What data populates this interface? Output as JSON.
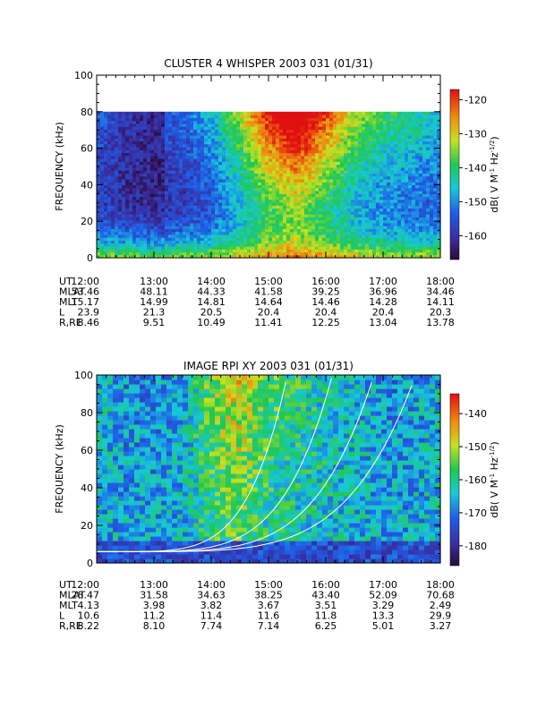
{
  "chart_data": [
    {
      "type": "heatmap",
      "title": "CLUSTER 4 WHISPER 2003 031 (01/31)",
      "ylabel": "FREQUENCY (kHz)",
      "ylim": [
        0,
        100
      ],
      "yticks": [
        "0",
        "20",
        "40",
        "60",
        "80",
        "100"
      ],
      "xlim": [
        "12:00",
        "18:00"
      ],
      "data_top_khz": 80,
      "colorbar": {
        "label": "dB( V M⁻¹ Hz⁻¹ᐟ²)",
        "label_parts": [
          "dB( V M",
          "-1",
          " Hz",
          "-1/2",
          ")"
        ],
        "range": [
          -167,
          -117
        ],
        "ticks": [
          "-120",
          "-130",
          "-140",
          "-150",
          "-160"
        ]
      },
      "intensity_profile": [
        {
          "t": "12:00",
          "level": 0.3
        },
        {
          "t": "12:30",
          "level": 0.22
        },
        {
          "t": "13:00",
          "level": 0.18
        },
        {
          "t": "13:30",
          "level": 0.22
        },
        {
          "t": "14:00",
          "level": 0.32
        },
        {
          "t": "14:30",
          "level": 0.55
        },
        {
          "t": "15:00",
          "level": 0.8
        },
        {
          "t": "15:30",
          "level": 0.95
        },
        {
          "t": "16:00",
          "level": 0.75
        },
        {
          "t": "16:30",
          "level": 0.55
        },
        {
          "t": "17:00",
          "level": 0.45
        },
        {
          "t": "17:30",
          "level": 0.4
        },
        {
          "t": "18:00",
          "level": 0.35
        }
      ],
      "table": {
        "rows": [
          {
            "label": "UT",
            "values": [
              "12:00",
              "13:00",
              "14:00",
              "15:00",
              "16:00",
              "17:00",
              "18:00"
            ]
          },
          {
            "label": "MLAT",
            "values": [
              "53.46",
              "48.11",
              "44.33",
              "41.58",
              "39.25",
              "36.96",
              "34.46"
            ]
          },
          {
            "label": "MLT",
            "values": [
              "15.17",
              "14.99",
              "14.81",
              "14.64",
              "14.46",
              "14.28",
              "14.11"
            ]
          },
          {
            "label": "L",
            "values": [
              "23.9",
              "21.3",
              "20.5",
              "20.4",
              "20.4",
              "20.4",
              "20.3"
            ]
          },
          {
            "label": "R,RE",
            "values": [
              "8.46",
              "9.51",
              "10.49",
              "11.41",
              "12.25",
              "13.04",
              "13.78"
            ]
          }
        ]
      }
    },
    {
      "type": "heatmap",
      "title": "IMAGE RPI XY 2003 031 (01/31)",
      "ylabel": "FREQUENCY (kHz)",
      "ylim": [
        0,
        100
      ],
      "yticks": [
        "0",
        "20",
        "40",
        "60",
        "80",
        "100"
      ],
      "xlim": [
        "12:00",
        "18:00"
      ],
      "colorbar": {
        "label": "dB( V M⁻¹ Hz⁻¹ᐟ²)",
        "label_parts": [
          "dB( V M",
          "-1",
          " Hz",
          "-1/2",
          ")"
        ],
        "range": [
          -186,
          -134
        ],
        "ticks": [
          "-140",
          "-150",
          "-160",
          "-170",
          "-180"
        ]
      },
      "intensity_profile": [
        {
          "t": "12:00",
          "level": 0.35
        },
        {
          "t": "12:30",
          "level": 0.3
        },
        {
          "t": "13:00",
          "level": 0.28
        },
        {
          "t": "13:30",
          "level": 0.35
        },
        {
          "t": "14:00",
          "level": 0.55
        },
        {
          "t": "14:30",
          "level": 0.65
        },
        {
          "t": "15:00",
          "level": 0.5
        },
        {
          "t": "15:30",
          "level": 0.45
        },
        {
          "t": "16:00",
          "level": 0.4
        },
        {
          "t": "16:30",
          "level": 0.38
        },
        {
          "t": "17:00",
          "level": 0.3
        },
        {
          "t": "17:30",
          "level": 0.3
        },
        {
          "t": "18:00",
          "level": 0.35
        }
      ],
      "table": {
        "rows": [
          {
            "label": "UT",
            "values": [
              "12:00",
              "13:00",
              "14:00",
              "15:00",
              "16:00",
              "17:00",
              "18:00"
            ]
          },
          {
            "label": "MLAT",
            "values": [
              "28.47",
              "31.58",
              "34.63",
              "38.25",
              "43.40",
              "52.09",
              "70.68"
            ]
          },
          {
            "label": "MLT",
            "values": [
              "4.13",
              "3.98",
              "3.82",
              "3.67",
              "3.51",
              "3.29",
              "2.49"
            ]
          },
          {
            "label": "L",
            "values": [
              "10.6",
              "11.2",
              "11.4",
              "11.6",
              "11.8",
              "13.3",
              "29.9"
            ]
          },
          {
            "label": "R,RE",
            "values": [
              "8.22",
              "8.10",
              "7.74",
              "7.14",
              "6.25",
              "5.01",
              "3.27"
            ]
          }
        ]
      }
    }
  ]
}
